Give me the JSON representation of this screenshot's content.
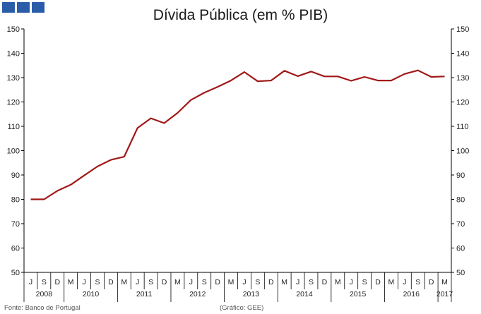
{
  "logo": {
    "color": "#2a5caa",
    "blocks": 3
  },
  "chart_data": {
    "type": "line",
    "title": "Dívida Pública (em % PIB)",
    "ylim": [
      50,
      150
    ],
    "yticks": [
      50,
      60,
      70,
      80,
      90,
      100,
      110,
      120,
      130,
      140,
      150
    ],
    "y_axes": "both",
    "grid": false,
    "legend": "none",
    "line_color": "#a01818",
    "quarter_labels": [
      "J",
      "S",
      "D",
      "M",
      "J",
      "S",
      "D",
      "M",
      "J",
      "S",
      "D",
      "M",
      "J",
      "S",
      "D",
      "M",
      "J",
      "S",
      "D",
      "M",
      "J",
      "S",
      "D",
      "M",
      "J",
      "S",
      "D",
      "M",
      "J",
      "S",
      "D",
      "M"
    ],
    "year_labels": [
      "2008",
      "2010",
      "2011",
      "2012",
      "2013",
      "2014",
      "2015",
      "2016",
      "2017"
    ],
    "year_spans": [
      [
        0,
        3
      ],
      [
        3,
        7
      ],
      [
        7,
        11
      ],
      [
        11,
        15
      ],
      [
        15,
        19
      ],
      [
        19,
        23
      ],
      [
        23,
        27
      ],
      [
        27,
        31
      ],
      [
        31,
        32
      ]
    ],
    "series": [
      {
        "values": [
          80.0,
          80.0,
          83.5,
          86.0,
          89.8,
          93.5,
          96.2,
          97.5,
          109.3,
          113.3,
          111.3,
          115.5,
          120.8,
          123.8,
          126.2,
          128.8,
          132.3,
          128.5,
          128.8,
          132.8,
          130.6,
          132.5,
          130.5,
          130.5,
          128.7,
          130.3,
          128.8,
          128.8,
          131.5,
          133.0,
          130.3,
          130.5
        ]
      }
    ]
  },
  "footer": {
    "source": "Fonte: Banco de Portugal",
    "credit": "(Gráfico: GEE)"
  }
}
